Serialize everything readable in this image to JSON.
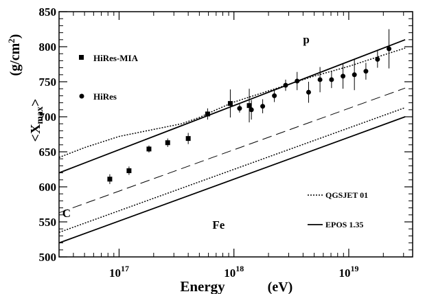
{
  "chart_data": {
    "type": "scatter",
    "title": "",
    "xlabel": "Energy",
    "xlabel_unit": "(eV)",
    "ylabel_main": "<X",
    "ylabel_sub": "max",
    "ylabel_close": ">",
    "ylabel_unit_pre": "(g/cm",
    "ylabel_unit_sup": "2",
    "ylabel_unit_post": ")",
    "xscale": "log",
    "xlim": [
      3e+16,
      3.6e+19
    ],
    "ylim": [
      500,
      850
    ],
    "grid": false,
    "x_tick_labels": [
      {
        "x": 1e+17,
        "base": "10",
        "exp": "17"
      },
      {
        "x": 1e+18,
        "base": "10",
        "exp": "18"
      },
      {
        "x": 1e+19,
        "base": "10",
        "exp": "19"
      }
    ],
    "y_ticks": [
      500,
      550,
      600,
      650,
      700,
      750,
      800,
      850
    ],
    "y_tick_labels": [
      "500",
      "550",
      "600",
      "650",
      "700",
      "750",
      "800",
      "850"
    ],
    "legend": {
      "placement": "left/bottom-right",
      "data_entries": [
        {
          "label": "HiRes-MIA",
          "marker": "square"
        },
        {
          "label": "HiRes",
          "marker": "circle"
        }
      ],
      "model_entries": [
        {
          "label": "QGSJET 01",
          "style": "dotted"
        },
        {
          "label": "EPOS 1.35",
          "style": "solid"
        }
      ]
    },
    "series": [
      {
        "name": "HiRes-MIA",
        "marker": "square",
        "points": [
          {
            "x": 8.3e+16,
            "y": 611,
            "err": 7
          },
          {
            "x": 1.22e+17,
            "y": 623,
            "err": 6
          },
          {
            "x": 1.82e+17,
            "y": 654,
            "err": 5
          },
          {
            "x": 2.65e+17,
            "y": 663,
            "err": 6
          },
          {
            "x": 4e+17,
            "y": 669,
            "err": 8
          },
          {
            "x": 5.9e+17,
            "y": 704,
            "err": 8
          },
          {
            "x": 9.3e+17,
            "y": 719,
            "err": 20
          },
          {
            "x": 1.36e+18,
            "y": 716,
            "err": 24
          }
        ]
      },
      {
        "name": "HiRes",
        "marker": "circle",
        "points": [
          {
            "x": 1.12e+18,
            "y": 712,
            "err": 6
          },
          {
            "x": 1.42e+18,
            "y": 710,
            "err": 14
          },
          {
            "x": 1.78e+18,
            "y": 715,
            "err": 10
          },
          {
            "x": 2.25e+18,
            "y": 730,
            "err": 9
          },
          {
            "x": 2.82e+18,
            "y": 745,
            "err": 8
          },
          {
            "x": 3.55e+18,
            "y": 751,
            "err": 13
          },
          {
            "x": 4.47e+18,
            "y": 735,
            "err": 15
          },
          {
            "x": 5.62e+18,
            "y": 753,
            "err": 18
          },
          {
            "x": 7.08e+18,
            "y": 753,
            "err": 12
          },
          {
            "x": 8.91e+18,
            "y": 758,
            "err": 18
          },
          {
            "x": 1.12e+19,
            "y": 760,
            "err": 22
          },
          {
            "x": 1.41e+19,
            "y": 765,
            "err": 12
          },
          {
            "x": 1.78e+19,
            "y": 782,
            "err": 12
          },
          {
            "x": 2.24e+19,
            "y": 797,
            "err": 28
          }
        ]
      }
    ],
    "curves": [
      {
        "name": "QGSJET 01 p",
        "style": "dotted",
        "width": 1.5,
        "points": [
          [
            3e+16,
            642
          ],
          [
            5e+16,
            656
          ],
          [
            1e+17,
            672
          ],
          [
            2e+17,
            682
          ],
          [
            3.5e+17,
            690
          ],
          [
            5e+17,
            699
          ],
          [
            7e+17,
            710
          ],
          [
            1e+18,
            721
          ],
          [
            2e+18,
            737
          ],
          [
            5e+18,
            758
          ],
          [
            1e+19,
            772
          ],
          [
            2e+19,
            788
          ],
          [
            3.1e+19,
            798
          ]
        ]
      },
      {
        "name": "EPOS 1.35 p",
        "style": "solid",
        "width": 1.8,
        "points": [
          [
            3e+16,
            620
          ],
          [
            3.1e+19,
            810
          ]
        ]
      },
      {
        "name": "C",
        "style": "dashed",
        "width": 1,
        "points": [
          [
            3e+16,
            563
          ],
          [
            3.1e+19,
            741
          ]
        ]
      },
      {
        "name": "QGSJET 01 Fe",
        "style": "dotted",
        "width": 1.5,
        "points": [
          [
            3e+16,
            535
          ],
          [
            3.1e+19,
            713
          ]
        ]
      },
      {
        "name": "EPOS 1.35 Fe",
        "style": "solid",
        "width": 1.8,
        "points": [
          [
            3e+16,
            520
          ],
          [
            3.1e+19,
            700
          ]
        ]
      }
    ],
    "annotations": [
      {
        "text": "p",
        "x": 4e+18,
        "y": 805
      },
      {
        "text": "C",
        "x": 3.2e+16,
        "y": 557
      },
      {
        "text": "Fe",
        "x": 6.5e+17,
        "y": 540
      }
    ]
  }
}
